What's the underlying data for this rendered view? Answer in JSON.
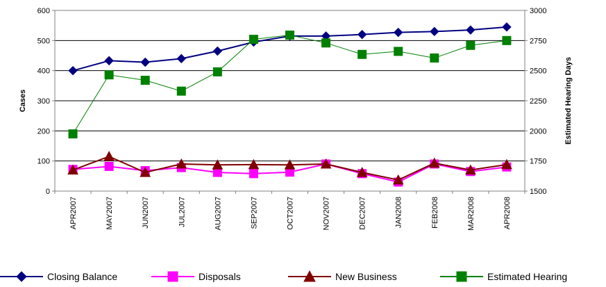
{
  "chart_data": {
    "type": "line",
    "categories": [
      "APR2007",
      "MAY2007",
      "JUN2007",
      "JUL2007",
      "AUG2007",
      "SEP2007",
      "OCT2007",
      "NOV2007",
      "DEC2007",
      "JAN2008",
      "FEB2008",
      "MAR2008",
      "APR2008"
    ],
    "ylabel": "Cases",
    "y2label": "Estimated Hearing Days",
    "ylim": [
      0,
      600
    ],
    "y_ticks": [
      "0",
      "100",
      "200",
      "300",
      "400",
      "500",
      "600"
    ],
    "y2lim": [
      1500,
      3000
    ],
    "y2_ticks": [
      "1500",
      "1750",
      "2000",
      "2250",
      "2500",
      "2750",
      "3000"
    ],
    "grid": true,
    "legend_position": "bottom",
    "series": [
      {
        "name": "Closing Balance",
        "axis": "left",
        "color": "#000080",
        "marker": "diamond",
        "values": [
          400,
          433,
          428,
          440,
          465,
          495,
          515,
          515,
          520,
          527,
          530,
          535,
          545
        ]
      },
      {
        "name": "Disposals",
        "axis": "left",
        "color": "#ff00ff",
        "marker": "square",
        "values": [
          72,
          82,
          68,
          78,
          62,
          58,
          63,
          90,
          58,
          30,
          90,
          65,
          80
        ]
      },
      {
        "name": "New Business",
        "axis": "left",
        "color": "#800000",
        "marker": "triangle",
        "values": [
          70,
          115,
          62,
          90,
          87,
          88,
          87,
          90,
          62,
          37,
          93,
          70,
          88
        ]
      },
      {
        "name": "Estimated Hearing",
        "axis": "right",
        "color": "#008000",
        "marker": "square",
        "values": [
          1975,
          2465,
          2420,
          2330,
          2490,
          2760,
          2795,
          2730,
          2635,
          2660,
          2605,
          2710,
          2750
        ]
      }
    ]
  }
}
